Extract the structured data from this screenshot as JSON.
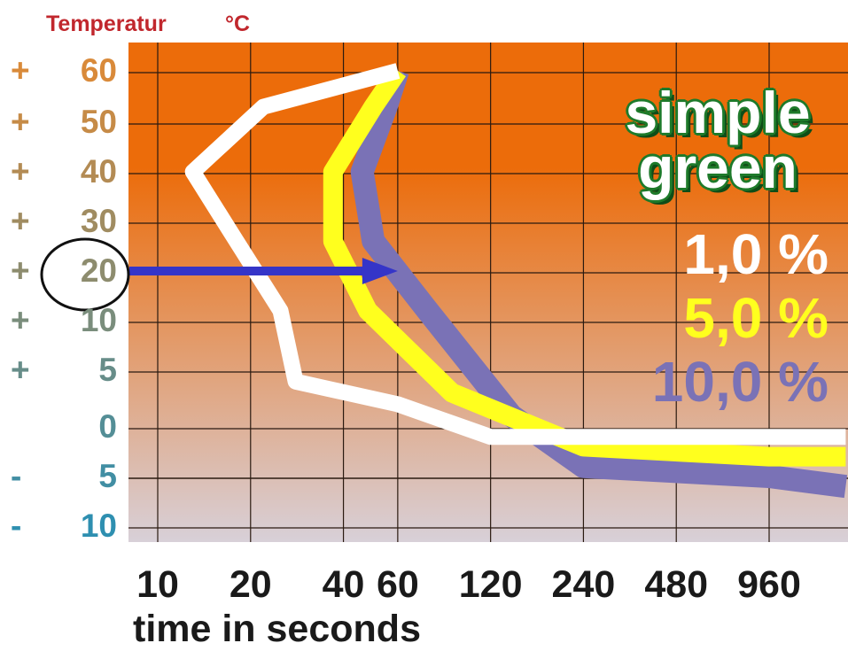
{
  "colors": {
    "background_top": "#ec6c0a",
    "background_bottom": "#d8d0d8",
    "grid": "#2a1a10",
    "series_1": "#ffffff",
    "series_5": "#ffff1e",
    "series_10": "#7a72b6",
    "arrow": "#3535c8",
    "title": "#c1272d",
    "logo_green": "#1e7a2a",
    "label_warm": "#d98a3a",
    "label_cool": "#2e8fb0"
  },
  "logo": {
    "line1": "simple",
    "line2": "green"
  },
  "chart_data": {
    "type": "line",
    "title": "",
    "ylabel": "Temperatur",
    "yunit": "°C",
    "xlabel": "time  in seconds",
    "y_ticks": [
      {
        "sign": "+",
        "num": "60",
        "value": 60
      },
      {
        "sign": "+",
        "num": "50",
        "value": 50
      },
      {
        "sign": "+",
        "num": "40",
        "value": 40
      },
      {
        "sign": "+",
        "num": "30",
        "value": 30
      },
      {
        "sign": "+",
        "num": "20",
        "value": 20
      },
      {
        "sign": "+",
        "num": "10",
        "value": 10
      },
      {
        "sign": "+",
        "num": "5",
        "value": 5
      },
      {
        "sign": "",
        "num": "0",
        "value": 0
      },
      {
        "sign": "-",
        "num": "5",
        "value": -5
      },
      {
        "sign": "-",
        "num": "10",
        "value": -10
      }
    ],
    "x_ticks": [
      "10",
      "20",
      "40",
      "60",
      "120",
      "240",
      "480",
      "960"
    ],
    "x_scale": "log2",
    "grid": true,
    "legend_position": "right",
    "series": [
      {
        "name": "1,0 %",
        "points": [
          [
            60,
            60
          ],
          [
            22,
            53
          ],
          [
            13,
            40
          ],
          [
            18,
            26
          ],
          [
            25,
            12
          ],
          [
            28,
            4
          ],
          [
            60,
            2
          ],
          [
            120,
            -1
          ],
          [
            240,
            -1
          ],
          [
            960,
            -1
          ],
          [
            1700,
            -1
          ]
        ]
      },
      {
        "name": "5,0 %",
        "points": [
          [
            60,
            60
          ],
          [
            50,
            53
          ],
          [
            37,
            40
          ],
          [
            37,
            26
          ],
          [
            48,
            12
          ],
          [
            90,
            3
          ],
          [
            240,
            -2
          ],
          [
            960,
            -3
          ],
          [
            1700,
            -3
          ]
        ]
      },
      {
        "name": "10,0 %",
        "points": [
          [
            60,
            60
          ],
          [
            55,
            53
          ],
          [
            46,
            40
          ],
          [
            50,
            26
          ],
          [
            75,
            12
          ],
          [
            140,
            1
          ],
          [
            240,
            -4
          ],
          [
            960,
            -5
          ],
          [
            1700,
            -6
          ]
        ]
      }
    ],
    "annotations": [
      {
        "type": "circle",
        "target": "y tick +20"
      },
      {
        "type": "arrow",
        "y": 20,
        "x_from": 10,
        "x_to": 60
      }
    ]
  }
}
